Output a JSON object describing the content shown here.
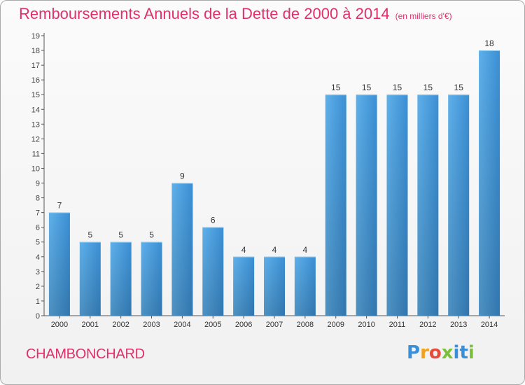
{
  "chart_data": {
    "type": "bar",
    "title": "Remboursements Annuels de la Dette de 2000 à 2014",
    "unit_note": "(en milliers d'€)",
    "categories": [
      "2000",
      "2001",
      "2002",
      "2003",
      "2004",
      "2005",
      "2006",
      "2007",
      "2008",
      "2009",
      "2010",
      "2011",
      "2012",
      "2013",
      "2014"
    ],
    "values": [
      7,
      5,
      5,
      5,
      9,
      6,
      4,
      4,
      4,
      15,
      15,
      15,
      15,
      15,
      18
    ],
    "ylim": [
      0,
      19
    ],
    "yticks": [
      0,
      1,
      2,
      3,
      4,
      5,
      6,
      7,
      8,
      9,
      10,
      11,
      12,
      13,
      14,
      15,
      16,
      17,
      18,
      19
    ],
    "grid": false,
    "bar_color": "#4a9fe0",
    "bar_color_dark": "#2f7fc4"
  },
  "footer": {
    "commune": "CHAMBONCHARD",
    "logo": "Proxiti"
  },
  "colors": {
    "title": "#e0306a"
  }
}
